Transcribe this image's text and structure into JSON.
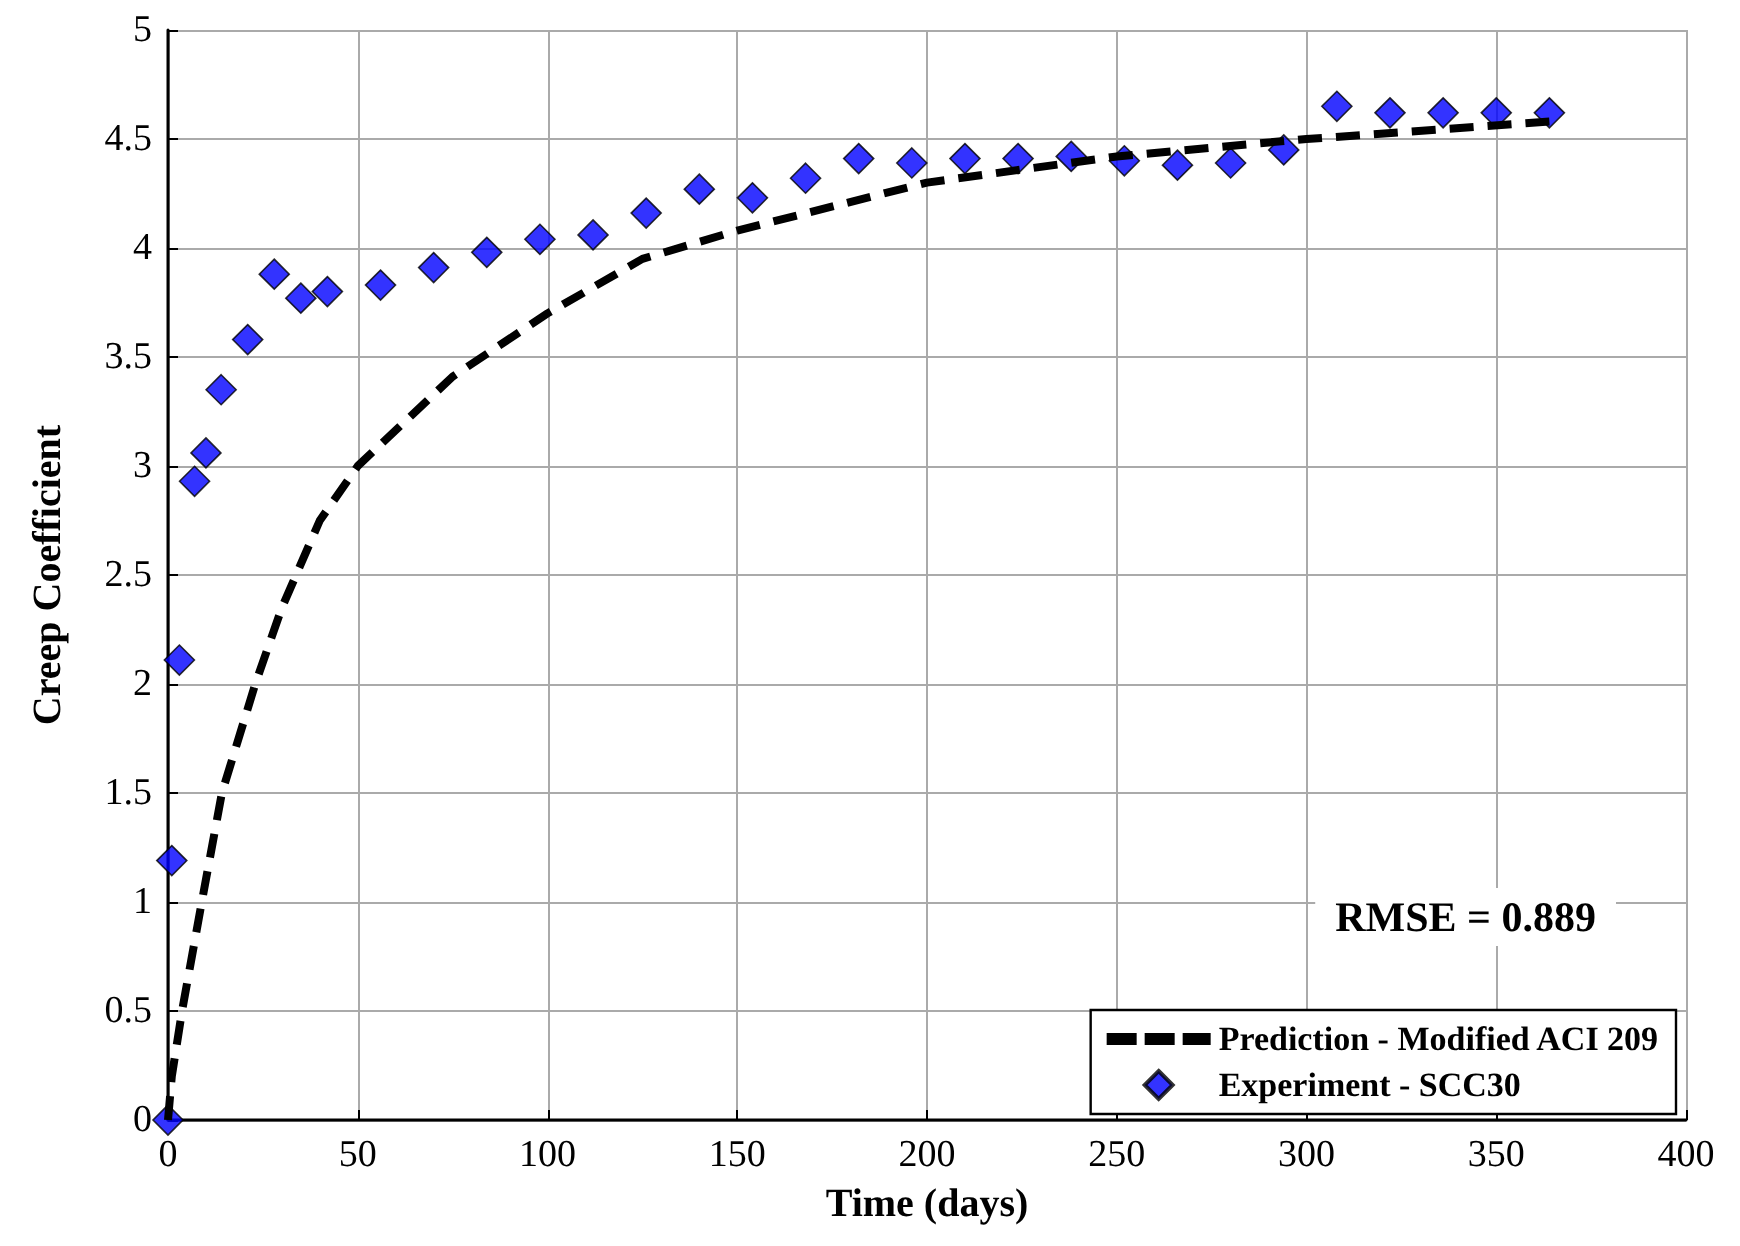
{
  "chart_data": {
    "type": "scatter",
    "xlabel": "Time (days)",
    "ylabel": "Creep Coefficient",
    "xlim": [
      0,
      400
    ],
    "xticks": [
      0,
      50,
      100,
      150,
      200,
      250,
      300,
      350,
      400
    ],
    "ylim": [
      0,
      5
    ],
    "yticks": [
      0,
      0.5,
      1,
      1.5,
      2,
      2.5,
      3,
      3.5,
      4,
      4.5,
      5
    ],
    "grid": true,
    "legend": "bottom right",
    "annotations": [
      "RMSE = 0.889"
    ],
    "series": [
      {
        "name": "Prediction - Modified ACI 209",
        "type": "line",
        "color": "#000000",
        "marker": "none",
        "line_style": "dashed",
        "x": [
          0,
          1,
          3.7,
          8.9,
          14.2,
          23,
          30,
          40,
          50,
          75,
          100,
          125,
          150,
          200,
          250,
          300,
          364
        ],
        "values": [
          0,
          0.2,
          0.5,
          1,
          1.5,
          2,
          2.35,
          2.75,
          3,
          3.41,
          3.7,
          3.95,
          4.08,
          4.3,
          4.42,
          4.5,
          4.58
        ]
      },
      {
        "name": "Experiment - SCC30",
        "type": "scatter",
        "color": "#0000ff",
        "marker": "diamond",
        "x": [
          0,
          1,
          3,
          7,
          10,
          14,
          21,
          28,
          35,
          42,
          56,
          70,
          84,
          98,
          112,
          126,
          140,
          154,
          168,
          182,
          196,
          210,
          224,
          238,
          252,
          266,
          280,
          294,
          308,
          322,
          336,
          350,
          364
        ],
        "values": [
          0,
          1.19,
          2.11,
          2.93,
          3.06,
          3.35,
          3.58,
          3.88,
          3.77,
          3.8,
          3.83,
          3.91,
          3.98,
          4.04,
          4.06,
          4.16,
          4.27,
          4.23,
          4.32,
          4.41,
          4.39,
          4.41,
          4.41,
          4.42,
          4.4,
          4.38,
          4.39,
          4.45,
          4.65,
          4.62,
          4.62,
          4.62,
          4.62
        ]
      }
    ]
  }
}
